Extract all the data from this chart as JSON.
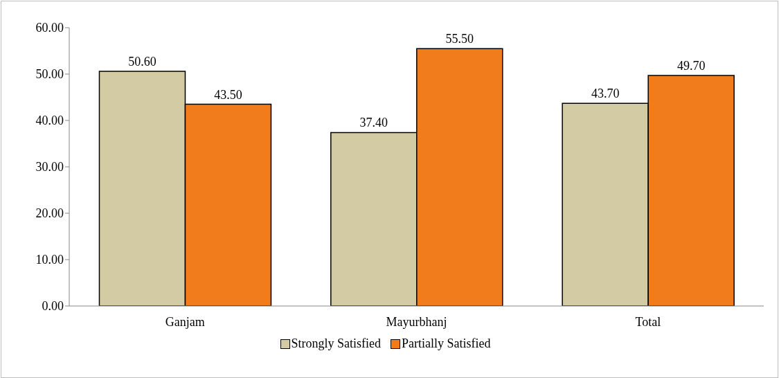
{
  "chart_data": {
    "type": "bar",
    "categories": [
      "Ganjam",
      "Mayurbhanj",
      "Total"
    ],
    "series": [
      {
        "name": "Strongly Satisfied",
        "color": "#d3cba3",
        "values": [
          50.6,
          37.4,
          43.7
        ],
        "value_labels": [
          "50.60",
          "37.40",
          "43.70"
        ]
      },
      {
        "name": "Partially Satisfied",
        "color": "#f07c1b",
        "values": [
          43.5,
          55.5,
          49.7
        ],
        "value_labels": [
          "43.50",
          "55.50",
          "49.70"
        ]
      }
    ],
    "ylim": [
      0,
      60
    ],
    "yticks": [
      {
        "value": 0,
        "label": "0.00"
      },
      {
        "value": 10,
        "label": "10.00"
      },
      {
        "value": 20,
        "label": "20.00"
      },
      {
        "value": 30,
        "label": "30.00"
      },
      {
        "value": 40,
        "label": "40.00"
      },
      {
        "value": 50,
        "label": "50.00"
      },
      {
        "value": 60,
        "label": "60.00"
      }
    ],
    "grid": false,
    "legend": "bottom"
  }
}
